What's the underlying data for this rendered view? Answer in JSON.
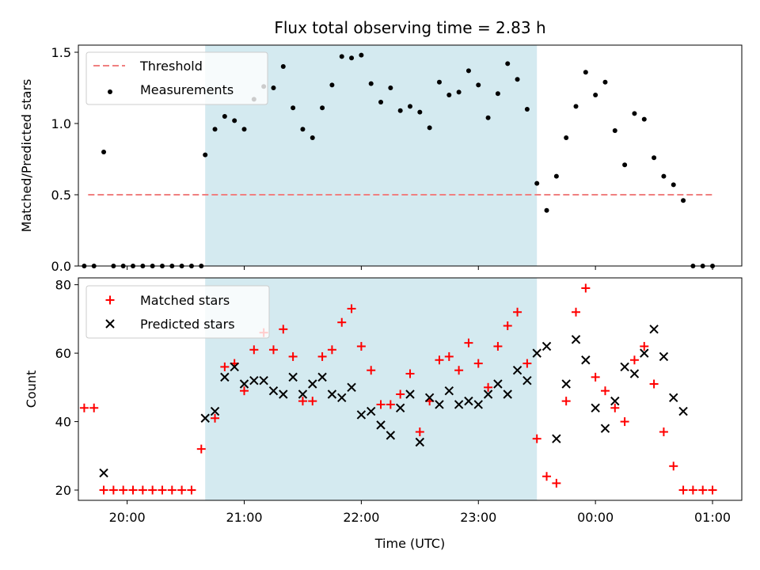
{
  "chart_data": {
    "title": "Flux total observing time = 2.83 h",
    "xlabel": "Time (UTC)",
    "xlim": [
      "19:35",
      "01:15"
    ],
    "x_tick_labels": [
      "20:00",
      "21:00",
      "22:00",
      "23:00",
      "00:00",
      "01:00"
    ],
    "x_tick_times": [
      "20:00",
      "21:00",
      "22:00",
      "23:00",
      "00:00",
      "01:00"
    ],
    "shaded_interval": {
      "start": "20:40",
      "end": "23:30",
      "color": "#d4eaf0"
    },
    "top": {
      "type": "scatter",
      "ylabel": "Matched/Predicted stars",
      "ylim": [
        0,
        1.55
      ],
      "y_ticks": [
        "0.0",
        "0.5",
        "1.0",
        "1.5"
      ],
      "y_tick_values": [
        0,
        0.5,
        1.0,
        1.5
      ],
      "threshold": {
        "name": "Threshold",
        "value": 0.5,
        "x_start": "19:40",
        "x_end": "01:00",
        "color": "#f08080"
      },
      "series": {
        "name": "Measurements",
        "color": "#000000",
        "points": [
          [
            "19:38",
            0
          ],
          [
            "19:43",
            0
          ],
          [
            "19:48",
            0.8
          ],
          [
            "19:53",
            0
          ],
          [
            "19:58",
            0
          ],
          [
            "20:03",
            0
          ],
          [
            "20:08",
            0
          ],
          [
            "20:13",
            0
          ],
          [
            "20:18",
            0
          ],
          [
            "20:23",
            0
          ],
          [
            "20:28",
            0
          ],
          [
            "20:33",
            0
          ],
          [
            "20:38",
            0
          ],
          [
            "20:40",
            0.78
          ],
          [
            "20:45",
            0.96
          ],
          [
            "20:50",
            1.05
          ],
          [
            "20:55",
            1.02
          ],
          [
            "21:00",
            0.96
          ],
          [
            "21:05",
            1.17
          ],
          [
            "21:10",
            1.26
          ],
          [
            "21:15",
            1.25
          ],
          [
            "21:20",
            1.4
          ],
          [
            "21:25",
            1.11
          ],
          [
            "21:30",
            0.96
          ],
          [
            "21:35",
            0.9
          ],
          [
            "21:40",
            1.11
          ],
          [
            "21:45",
            1.27
          ],
          [
            "21:50",
            1.47
          ],
          [
            "21:55",
            1.46
          ],
          [
            "22:00",
            1.48
          ],
          [
            "22:05",
            1.28
          ],
          [
            "22:10",
            1.15
          ],
          [
            "22:15",
            1.25
          ],
          [
            "22:20",
            1.09
          ],
          [
            "22:25",
            1.12
          ],
          [
            "22:30",
            1.08
          ],
          [
            "22:35",
            0.97
          ],
          [
            "22:40",
            1.29
          ],
          [
            "22:45",
            1.2
          ],
          [
            "22:50",
            1.22
          ],
          [
            "22:55",
            1.37
          ],
          [
            "23:00",
            1.27
          ],
          [
            "23:05",
            1.04
          ],
          [
            "23:10",
            1.21
          ],
          [
            "23:15",
            1.42
          ],
          [
            "23:20",
            1.31
          ],
          [
            "23:25",
            1.1
          ],
          [
            "23:30",
            0.58
          ],
          [
            "23:35",
            0.39
          ],
          [
            "23:40",
            0.63
          ],
          [
            "23:45",
            0.9
          ],
          [
            "23:50",
            1.12
          ],
          [
            "23:55",
            1.36
          ],
          [
            "00:00",
            1.2
          ],
          [
            "00:05",
            1.29
          ],
          [
            "00:10",
            0.95
          ],
          [
            "00:15",
            0.71
          ],
          [
            "00:20",
            1.07
          ],
          [
            "00:25",
            1.03
          ],
          [
            "00:30",
            0.76
          ],
          [
            "00:35",
            0.63
          ],
          [
            "00:40",
            0.57
          ],
          [
            "00:45",
            0.46
          ],
          [
            "00:50",
            0
          ],
          [
            "00:55",
            0
          ],
          [
            "01:00",
            0
          ]
        ]
      },
      "legend": {
        "placement": "top-left",
        "entries": [
          "Threshold",
          "Measurements"
        ]
      }
    },
    "bottom": {
      "type": "scatter",
      "ylabel": "Count",
      "ylim": [
        17,
        82
      ],
      "y_ticks": [
        "20",
        "40",
        "60",
        "80"
      ],
      "y_tick_values": [
        20,
        40,
        60,
        80
      ],
      "series": [
        {
          "name": "Matched stars",
          "marker": "plus",
          "color": "#ff0000",
          "points": [
            [
              "19:38",
              44
            ],
            [
              "19:43",
              44
            ],
            [
              "19:48",
              20
            ],
            [
              "19:53",
              20
            ],
            [
              "19:58",
              20
            ],
            [
              "20:03",
              20
            ],
            [
              "20:08",
              20
            ],
            [
              "20:13",
              20
            ],
            [
              "20:18",
              20
            ],
            [
              "20:23",
              20
            ],
            [
              "20:28",
              20
            ],
            [
              "20:33",
              20
            ],
            [
              "20:38",
              32
            ],
            [
              "20:45",
              41
            ],
            [
              "20:50",
              56
            ],
            [
              "20:55",
              57
            ],
            [
              "21:00",
              49
            ],
            [
              "21:05",
              61
            ],
            [
              "21:10",
              66
            ],
            [
              "21:15",
              61
            ],
            [
              "21:20",
              67
            ],
            [
              "21:25",
              59
            ],
            [
              "21:30",
              46
            ],
            [
              "21:35",
              46
            ],
            [
              "21:40",
              59
            ],
            [
              "21:45",
              61
            ],
            [
              "21:50",
              69
            ],
            [
              "21:55",
              73
            ],
            [
              "22:00",
              62
            ],
            [
              "22:05",
              55
            ],
            [
              "22:10",
              45
            ],
            [
              "22:15",
              45
            ],
            [
              "22:20",
              48
            ],
            [
              "22:25",
              54
            ],
            [
              "22:30",
              37
            ],
            [
              "22:35",
              46
            ],
            [
              "22:40",
              58
            ],
            [
              "22:45",
              59
            ],
            [
              "22:50",
              55
            ],
            [
              "22:55",
              63
            ],
            [
              "23:00",
              57
            ],
            [
              "23:05",
              50
            ],
            [
              "23:10",
              62
            ],
            [
              "23:15",
              68
            ],
            [
              "23:20",
              72
            ],
            [
              "23:25",
              57
            ],
            [
              "23:30",
              35
            ],
            [
              "23:35",
              24
            ],
            [
              "23:40",
              22
            ],
            [
              "23:45",
              46
            ],
            [
              "23:50",
              72
            ],
            [
              "23:55",
              79
            ],
            [
              "00:00",
              53
            ],
            [
              "00:05",
              49
            ],
            [
              "00:10",
              44
            ],
            [
              "00:15",
              40
            ],
            [
              "00:20",
              58
            ],
            [
              "00:25",
              62
            ],
            [
              "00:30",
              51
            ],
            [
              "00:35",
              37
            ],
            [
              "00:40",
              27
            ],
            [
              "00:45",
              20
            ],
            [
              "00:50",
              20
            ],
            [
              "00:55",
              20
            ],
            [
              "01:00",
              20
            ]
          ]
        },
        {
          "name": "Predicted stars",
          "marker": "x",
          "color": "#000000",
          "points": [
            [
              "19:48",
              25
            ],
            [
              "20:40",
              41
            ],
            [
              "20:45",
              43
            ],
            [
              "20:50",
              53
            ],
            [
              "20:55",
              56
            ],
            [
              "21:00",
              51
            ],
            [
              "21:05",
              52
            ],
            [
              "21:10",
              52
            ],
            [
              "21:15",
              49
            ],
            [
              "21:20",
              48
            ],
            [
              "21:25",
              53
            ],
            [
              "21:30",
              48
            ],
            [
              "21:35",
              51
            ],
            [
              "21:40",
              53
            ],
            [
              "21:45",
              48
            ],
            [
              "21:50",
              47
            ],
            [
              "21:55",
              50
            ],
            [
              "22:00",
              42
            ],
            [
              "22:05",
              43
            ],
            [
              "22:10",
              39
            ],
            [
              "22:15",
              36
            ],
            [
              "22:20",
              44
            ],
            [
              "22:25",
              48
            ],
            [
              "22:30",
              34
            ],
            [
              "22:35",
              47
            ],
            [
              "22:40",
              45
            ],
            [
              "22:45",
              49
            ],
            [
              "22:50",
              45
            ],
            [
              "22:55",
              46
            ],
            [
              "23:00",
              45
            ],
            [
              "23:05",
              48
            ],
            [
              "23:10",
              51
            ],
            [
              "23:15",
              48
            ],
            [
              "23:20",
              55
            ],
            [
              "23:25",
              52
            ],
            [
              "23:30",
              60
            ],
            [
              "23:35",
              62
            ],
            [
              "23:40",
              35
            ],
            [
              "23:45",
              51
            ],
            [
              "23:50",
              64
            ],
            [
              "23:55",
              58
            ],
            [
              "00:00",
              44
            ],
            [
              "00:05",
              38
            ],
            [
              "00:10",
              46
            ],
            [
              "00:15",
              56
            ],
            [
              "00:20",
              54
            ],
            [
              "00:25",
              60
            ],
            [
              "00:30",
              67
            ],
            [
              "00:35",
              59
            ],
            [
              "00:40",
              47
            ],
            [
              "00:45",
              43
            ]
          ]
        }
      ],
      "legend": {
        "placement": "top-left",
        "entries": [
          "Matched stars",
          "Predicted stars"
        ]
      }
    }
  }
}
